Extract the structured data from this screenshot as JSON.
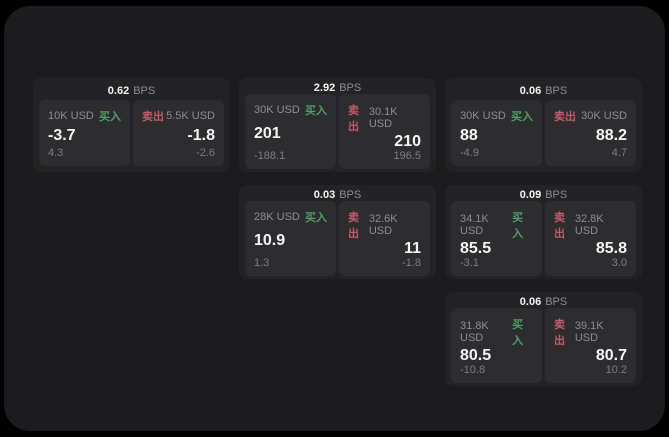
{
  "labels": {
    "bps_suffix": "BPS",
    "buy": "买入",
    "sell": "卖出"
  },
  "colors": {
    "outer_bg": "#000000",
    "window_bg": "#1c1c1e",
    "card_bg": "#232325",
    "panel_bg": "#2d2d2f",
    "text_primary": "#f5f5f5",
    "text_muted": "#8e8e93",
    "buy_green": "#4f9e68",
    "sell_red": "#c25a68"
  },
  "cards": [
    {
      "bps": "0.62",
      "col": 1,
      "row": 1,
      "buy": {
        "amount": "10K USD",
        "main": "-3.7",
        "sub": "4.3"
      },
      "sell": {
        "amount": "5.5K USD",
        "main": "-1.8",
        "sub": "-2.6"
      }
    },
    {
      "bps": "2.92",
      "col": 2,
      "row": 1,
      "buy": {
        "amount": "30K USD",
        "main": "201",
        "sub": "-188.1"
      },
      "sell": {
        "amount": "30.1K USD",
        "main": "210",
        "sub": "196.5"
      }
    },
    {
      "bps": "0.06",
      "col": 3,
      "row": 1,
      "buy": {
        "amount": "30K USD",
        "main": "88",
        "sub": "-4.9"
      },
      "sell": {
        "amount": "30K USD",
        "main": "88.2",
        "sub": "4.7"
      }
    },
    {
      "bps": "0.03",
      "col": 2,
      "row": 2,
      "buy": {
        "amount": "28K USD",
        "main": "10.9",
        "sub": "1.3"
      },
      "sell": {
        "amount": "32.6K USD",
        "main": "11",
        "sub": "-1.8"
      }
    },
    {
      "bps": "0.09",
      "col": 3,
      "row": 2,
      "buy": {
        "amount": "34.1K USD",
        "main": "85.5",
        "sub": "-3.1"
      },
      "sell": {
        "amount": "32.8K USD",
        "main": "85.8",
        "sub": "3.0"
      }
    },
    {
      "bps": "0.06",
      "col": 3,
      "row": 3,
      "buy": {
        "amount": "31.8K USD",
        "main": "80.5",
        "sub": "-10.8"
      },
      "sell": {
        "amount": "39.1K USD",
        "main": "80.7",
        "sub": "10.2"
      }
    }
  ]
}
